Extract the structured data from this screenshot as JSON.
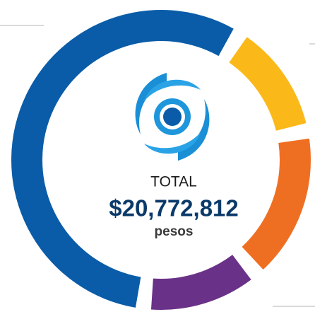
{
  "chart_data": {
    "type": "pie",
    "donut": true,
    "values": [
      13,
      17,
      13,
      57
    ],
    "colors": [
      "#fbb919",
      "#ef6f22",
      "#6a3188",
      "#0a5ca8"
    ],
    "annotations": [
      "TOTAL",
      "$20,772,812",
      "pesos"
    ]
  }
}
